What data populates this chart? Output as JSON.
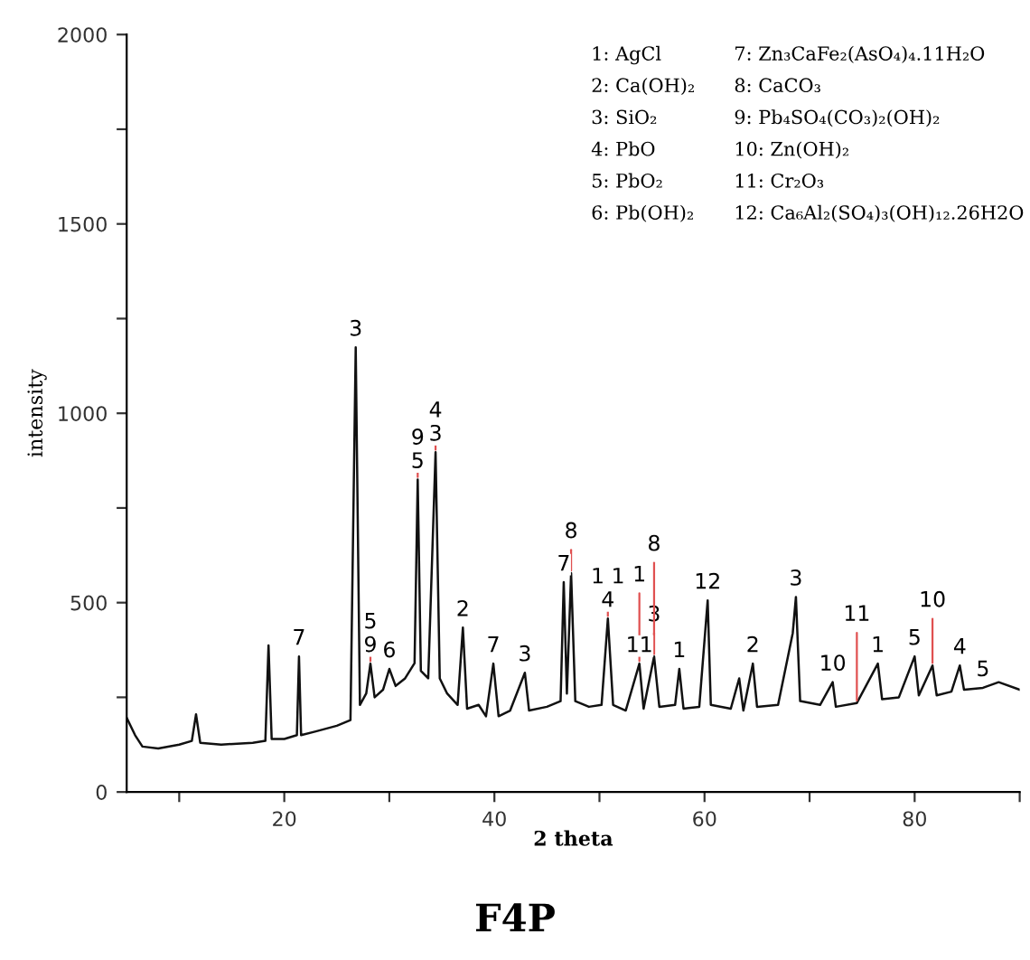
{
  "chart_data": {
    "type": "line",
    "title": "F4P",
    "xlabel": "2 theta",
    "ylabel": "intensity",
    "xlim": [
      5,
      90
    ],
    "ylim": [
      0,
      2000
    ],
    "xticks": [
      {
        "value": 10,
        "label": null
      },
      20,
      {
        "value": 30,
        "label": null
      },
      40,
      {
        "value": 50,
        "label": null
      },
      60,
      {
        "value": 70,
        "label": null
      },
      80,
      {
        "value": 90,
        "label": null
      }
    ],
    "yticks": [
      0,
      {
        "value": 250,
        "label": null
      },
      500,
      {
        "value": 750,
        "label": null
      },
      1000,
      {
        "value": 1250,
        "label": null
      },
      1500,
      {
        "value": 1750,
        "label": null
      },
      2000
    ],
    "grid": false,
    "legend": false,
    "marker": "none",
    "line_style": "solid",
    "series": [
      {
        "color": "#111111",
        "x": [
          5,
          5.8,
          6.5,
          8,
          10,
          11.2,
          11.6,
          12,
          14,
          17,
          18.2,
          18.5,
          18.8,
          20,
          21.2,
          21.4,
          21.6,
          23,
          25,
          26.3,
          26.8,
          27.2,
          27.8,
          28.2,
          28.6,
          29.4,
          30,
          30.6,
          31.5,
          32.4,
          32.7,
          33.0,
          33.7,
          34.4,
          34.8,
          35.5,
          36.5,
          37.0,
          37.4,
          38.5,
          39.2,
          39.9,
          40.4,
          41.5,
          42.9,
          43.3,
          45,
          46.3,
          46.6,
          46.9,
          47.3,
          47.7,
          49,
          50.2,
          50.8,
          51.3,
          52.5,
          53.8,
          54.2,
          55.2,
          55.7,
          57.2,
          57.6,
          58,
          59.5,
          60.3,
          60.6,
          62.5,
          63.3,
          63.7,
          64.6,
          65,
          67,
          68.4,
          68.7,
          69.1,
          71,
          72.2,
          72.5,
          74.5,
          76.5,
          76.9,
          78.5,
          80,
          80.4,
          81.7,
          82.1,
          83.5,
          84.3,
          84.7,
          86.5,
          88,
          90
        ],
        "values": [
          196,
          150,
          120,
          115,
          125,
          135,
          205,
          130,
          125,
          130,
          135,
          387,
          140,
          140,
          150,
          358,
          150,
          160,
          175,
          190,
          1174,
          230,
          260,
          339,
          250,
          270,
          325,
          280,
          300,
          340,
          825,
          320,
          300,
          897,
          300,
          260,
          230,
          434,
          220,
          230,
          200,
          339,
          200,
          215,
          315,
          215,
          225,
          240,
          554,
          260,
          578,
          240,
          225,
          230,
          458,
          230,
          215,
          339,
          220,
          358,
          225,
          230,
          325,
          220,
          225,
          506,
          230,
          220,
          300,
          215,
          339,
          225,
          230,
          420,
          515,
          240,
          230,
          290,
          225,
          235,
          339,
          245,
          250,
          358,
          255,
          334,
          255,
          265,
          334,
          270,
          275,
          290,
          270
        ]
      }
    ],
    "annotations": [
      "1: AgCl",
      "2: Ca(OH)₂",
      "3: SiO₂",
      "4: PbO",
      "5: PbO₂",
      "6: Pb(OH)₂",
      "7: Zn₃CaFe₂(AsO₄)₄.11H₂O",
      "8: CaCO₃",
      "9: Pb₄SO₄(CO₃)₂(OH)₂",
      "10: Zn(OH)₂",
      "11: Cr₂O₃",
      "12: Ca₆Al₂(SO₄)₃(OH)₁₂.26H2O",
      {
        "text": "7",
        "x": 21.4,
        "y": 358
      },
      {
        "text": "3",
        "x": 26.8,
        "y": 1174
      },
      {
        "text": "3",
        "x": 34.4,
        "y": 897
      },
      {
        "text": "5",
        "x": 32.7,
        "y": 825
      },
      {
        "text": "2",
        "x": 37.0,
        "y": 434
      },
      {
        "text": "9",
        "x": 28.2,
        "y": 339
      },
      {
        "text": "6",
        "x": 30,
        "y": 325
      },
      {
        "text": "3",
        "x": 42.9,
        "y": 315
      },
      {
        "text": "7",
        "x": 46.6,
        "y": 554
      },
      {
        "text": "8",
        "x": 47.3,
        "y": 578
      },
      {
        "text": "4",
        "x": 50.8,
        "y": 458
      },
      {
        "text": "11",
        "x": 53.8,
        "y": 339
      },
      {
        "text": "3",
        "x": 55.2,
        "y": 358
      },
      {
        "text": "1",
        "x": 57.6,
        "y": 325
      },
      {
        "text": "12",
        "x": 60.3,
        "y": 506
      },
      {
        "text": "2",
        "x": 64.6,
        "y": 339
      },
      {
        "text": "3",
        "x": 68.7,
        "y": 515
      },
      {
        "text": "1",
        "x": 76.5,
        "y": 339
      },
      {
        "text": "5",
        "x": 80,
        "y": 358
      },
      {
        "text": "10",
        "x": 81.7,
        "y": 334
      },
      {
        "text": "4",
        "x": 84.3,
        "y": 334
      },
      {
        "text": "4",
        "x": 34.4,
        "y": 897
      },
      {
        "text": "5",
        "x": 28.2,
        "y": 339
      },
      {
        "text": "9",
        "x": 32.7,
        "y": 825
      },
      {
        "text": "7",
        "x": 39.9,
        "y": 339
      },
      {
        "text": "1 1",
        "x": 50.8,
        "y": 458
      },
      {
        "text": "1",
        "x": 53.8,
        "y": 339
      },
      {
        "text": "8",
        "x": 55.2,
        "y": 358
      },
      {
        "text": "10",
        "x": 72.2,
        "y": 290
      },
      {
        "text": "11",
        "x": 74.5,
        "y": 235
      },
      {
        "text": "5",
        "x": 86.5,
        "y": 275
      }
    ]
  }
}
